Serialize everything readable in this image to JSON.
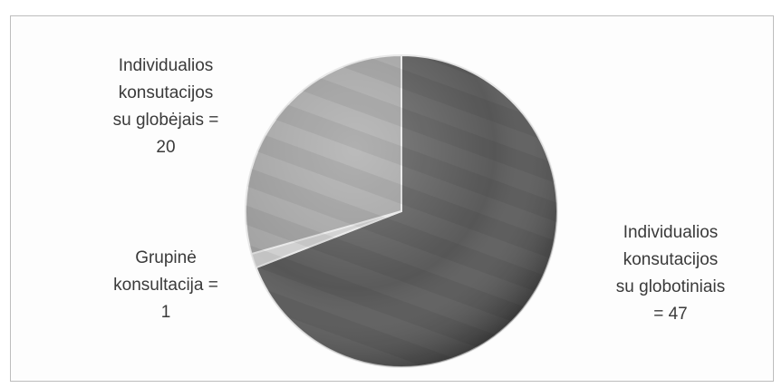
{
  "chart_data": {
    "type": "pie",
    "slices": [
      {
        "name": "Individualios konsutacijos su globotiniais",
        "value": 47,
        "color": "#5b5b5b",
        "label_lines": [
          "Individualios",
          "konsutacijos",
          "su globotiniais",
          "=  47"
        ]
      },
      {
        "name": "Grupinė konsultacija",
        "value": 1,
        "color": "#cfcfcf",
        "label_lines": [
          "Grupinė",
          "konsultacija =",
          "1"
        ]
      },
      {
        "name": "Individualios konsutacijos su globėjais",
        "value": 20,
        "color": "#a4a4a4",
        "label_lines": [
          "Individualios",
          "konsutacijos",
          "su globėjais =",
          "20"
        ]
      }
    ],
    "start_angle": "12 o'clock",
    "direction": "clockwise",
    "legend": "none",
    "style": "3d-shaded"
  }
}
